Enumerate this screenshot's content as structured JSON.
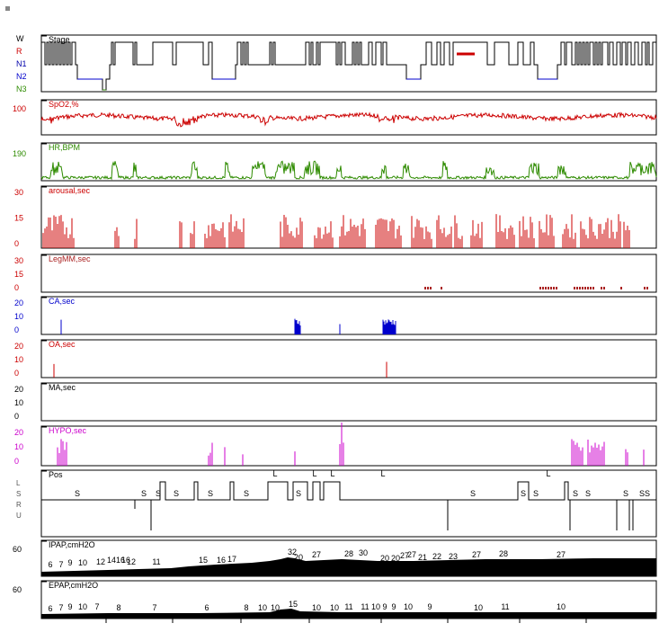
{
  "chart_data": {
    "type": "line",
    "axis_labels": {
      "stage": [
        "W",
        "R",
        "N1",
        "N2",
        "N3"
      ],
      "spo2": [
        "100"
      ],
      "hr": [
        "190"
      ],
      "arousal": [
        "30",
        "15",
        "0"
      ],
      "legmm": [
        "30",
        "15",
        "0"
      ],
      "ca": [
        "20",
        "10",
        "0"
      ],
      "oa": [
        "20",
        "10",
        "0"
      ],
      "ma": [
        "20",
        "10",
        "0"
      ],
      "hypo": [
        "20",
        "10",
        "0"
      ],
      "pos": [
        "L",
        "S",
        "R",
        "U"
      ],
      "ipap": [
        "60"
      ],
      "epap": [
        "60"
      ]
    },
    "panels": [
      {
        "id": "stage",
        "label": "Stage",
        "color": "#000000",
        "label_color": "#000000"
      },
      {
        "id": "spo2",
        "label": "SpO2,%",
        "color": "#cc0000",
        "label_color": "#cc0000"
      },
      {
        "id": "hr",
        "label": "HR,BPM",
        "color": "#2e8b00",
        "label_color": "#2e8b00"
      },
      {
        "id": "arousal",
        "label": "arousal,sec",
        "color": "#cc0000",
        "label_color": "#cc0000"
      },
      {
        "id": "legmm",
        "label": "LegMM,sec",
        "color": "#aa2222",
        "label_color": "#aa2222"
      },
      {
        "id": "ca",
        "label": "CA,sec",
        "color": "#0000cc",
        "label_color": "#0000cc"
      },
      {
        "id": "oa",
        "label": "OA,sec",
        "color": "#cc0000",
        "label_color": "#cc0000"
      },
      {
        "id": "ma",
        "label": "MA,sec",
        "color": "#000000",
        "label_color": "#000000"
      },
      {
        "id": "hypo",
        "label": "HYPO,sec",
        "color": "#cc00cc",
        "label_color": "#cc00cc"
      },
      {
        "id": "pos",
        "label": "Pos",
        "color": "#000000",
        "label_color": "#000000"
      },
      {
        "id": "ipap",
        "label": "IPAP,cmH2O",
        "color": "#000000",
        "label_color": "#000000"
      },
      {
        "id": "epap",
        "label": "EPAP,cmH2O",
        "color": "#000000",
        "label_color": "#000000"
      }
    ],
    "position_labels": [
      "S",
      "S",
      "S",
      "S",
      "S",
      "S",
      "L",
      "S",
      "L",
      "L",
      "L",
      "S",
      "S",
      "L",
      "S",
      "S",
      "S",
      "S",
      "S",
      "S"
    ],
    "ipap_labels": [
      "6",
      "7",
      "9",
      "10",
      "12",
      "14",
      "16",
      "16",
      "12",
      "11",
      "15",
      "16",
      "17",
      "32",
      "20",
      "27",
      "28",
      "30",
      "20",
      "20",
      "27",
      "27",
      "21",
      "22",
      "23",
      "27",
      "28",
      "27"
    ],
    "epap_labels": [
      "6",
      "7",
      "9",
      "10",
      "7",
      "8",
      "7",
      "6",
      "8",
      "10",
      "10",
      "15",
      "10",
      "10",
      "11",
      "11",
      "10",
      "9",
      "9",
      "10",
      "9",
      "10",
      "11",
      "10"
    ]
  }
}
